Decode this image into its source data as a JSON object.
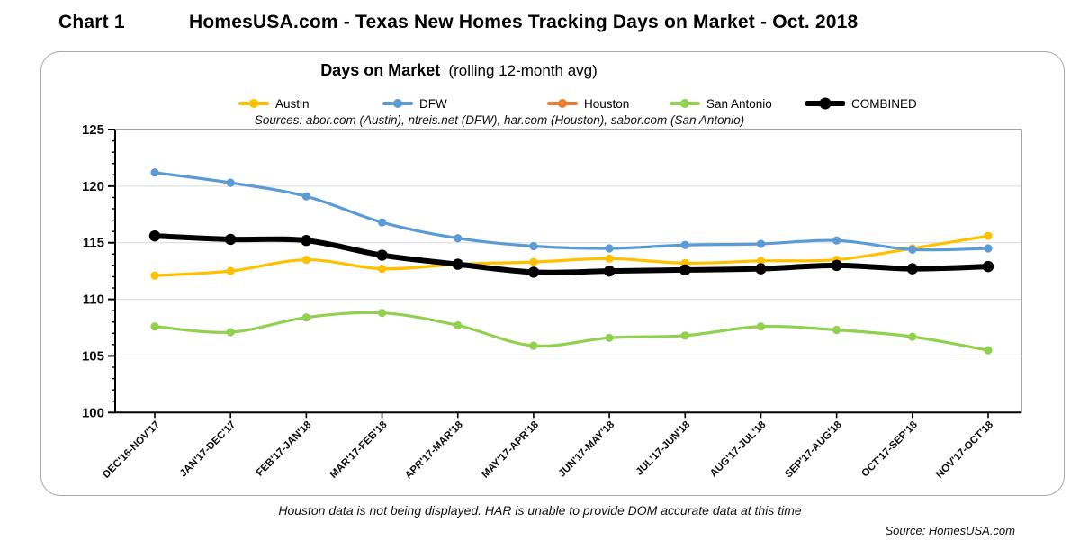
{
  "page": {
    "chart_label": "Chart 1",
    "title": "HomesUSA.com - Texas New Homes Tracking Days on Market - Oct. 2018",
    "footnote": "Houston data is not being displayed. HAR is unable to provide DOM accurate data at this time",
    "source": "Source: HomesUSA.com"
  },
  "chart_data": {
    "type": "line",
    "title": "Days on Market",
    "subtitle": "(rolling 12-month avg)",
    "sources_note": "Sources:  abor.com (Austin), ntreis.net (DFW), har.com (Houston), sabor.com (San Antonio)",
    "ylabel": "",
    "xlabel": "",
    "ylim": [
      100,
      125
    ],
    "ytick_step": 5,
    "grid": true,
    "legend_position": "top",
    "gridline_color": "#d9d9d9",
    "categories": [
      "DEC'16-NOV'17",
      "JAN'17-DEC'17",
      "FEB'17-JAN'18",
      "MAR'17-FEB'18",
      "APR'17-MAR'18",
      "MAY'17-APR'18",
      "JUN'17-MAY'18",
      "JUL'17-JUN'18",
      "AUG'17-JUL'18",
      "SEP'17-AUG'18",
      "OCT'17-SEP'18",
      "NOV'17-OCT'18"
    ],
    "series": [
      {
        "name": "Austin",
        "color": "#FFC000",
        "displayed": true,
        "values": [
          112.1,
          112.5,
          113.5,
          112.7,
          113.1,
          113.3,
          113.6,
          113.2,
          113.4,
          113.5,
          114.5,
          115.6
        ]
      },
      {
        "name": "DFW",
        "color": "#5B9BD5",
        "displayed": true,
        "values": [
          121.2,
          120.3,
          119.1,
          116.8,
          115.4,
          114.7,
          114.5,
          114.8,
          114.9,
          115.2,
          114.4,
          114.5
        ]
      },
      {
        "name": "Houston",
        "color": "#ED7D31",
        "displayed": false,
        "values": []
      },
      {
        "name": "San Antonio",
        "color": "#92D050",
        "displayed": true,
        "values": [
          107.6,
          107.1,
          108.4,
          108.8,
          107.7,
          105.9,
          106.6,
          106.8,
          107.6,
          107.3,
          106.7,
          105.5
        ]
      },
      {
        "name": "COMBINED",
        "color": "#000000",
        "displayed": true,
        "emphasis": true,
        "values": [
          115.6,
          115.3,
          115.2,
          113.9,
          113.1,
          112.4,
          112.5,
          112.6,
          112.7,
          113.0,
          112.7,
          112.9
        ]
      }
    ]
  }
}
